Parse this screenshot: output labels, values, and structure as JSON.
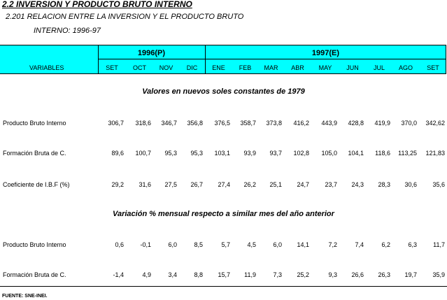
{
  "header": {
    "title": "2.2 INVERSION Y PRODUCTO BRUTO INTERNO",
    "subtitle_line1": "2.201  RELACION ENTRE LA INVERSION  Y EL PRODUCTO BRUTO",
    "subtitle_line2": "INTERNO: 1996-97"
  },
  "table": {
    "variables": "VARIABLES",
    "groups": [
      "1996(P)",
      "1997(E)"
    ],
    "months": [
      "SET",
      "OCT",
      "NOV",
      "DIC",
      "ENE",
      "FEB",
      "MAR",
      "ABR",
      "MAY",
      "JUN",
      "JUL",
      "AGO",
      "SET"
    ],
    "sections": [
      {
        "heading": "Valores en nuevos soles constantes de 1979",
        "rows": [
          {
            "label": "Producto Bruto Interno",
            "cells": [
              "306,7",
              "318,6",
              "346,7",
              "356,8",
              "376,5",
              "358,7",
              "373,8",
              "416,2",
              "443,9",
              "428,8",
              "419,9",
              "370,0",
              "342,62"
            ]
          },
          {
            "label": "Formación Bruta de C.",
            "cells": [
              "89,6",
              "100,7",
              "95,3",
              "95,3",
              "103,1",
              "93,9",
              "93,7",
              "102,8",
              "105,0",
              "104,1",
              "118,6",
              "113,25",
              "121,83"
            ]
          },
          {
            "label": "Coeficiente de I.B.F (%)",
            "cells": [
              "29,2",
              "31,6",
              "27,5",
              "26,7",
              "27,4",
              "26,2",
              "25,1",
              "24,7",
              "23,7",
              "24,3",
              "28,3",
              "30,6",
              "35,6"
            ]
          }
        ]
      },
      {
        "heading": "Variación % mensual respecto a similar mes del año anterior",
        "rows": [
          {
            "label": "Producto Bruto Interno",
            "cells": [
              "0,6",
              "-0,1",
              "6,0",
              "8,5",
              "5,7",
              "4,5",
              "6,0",
              "14,1",
              "7,2",
              "7,4",
              "6,2",
              "6,3",
              "11,7"
            ]
          },
          {
            "label": "Formación Bruta de C.",
            "cells": [
              "-1,4",
              "4,9",
              "3,4",
              "8,8",
              "15,7",
              "11,9",
              "7,3",
              "25,2",
              "9,3",
              "26,6",
              "26,3",
              "19,7",
              "35,9"
            ]
          }
        ]
      }
    ]
  },
  "footer": {
    "source": "FUENTE: SNE-INEI."
  }
}
